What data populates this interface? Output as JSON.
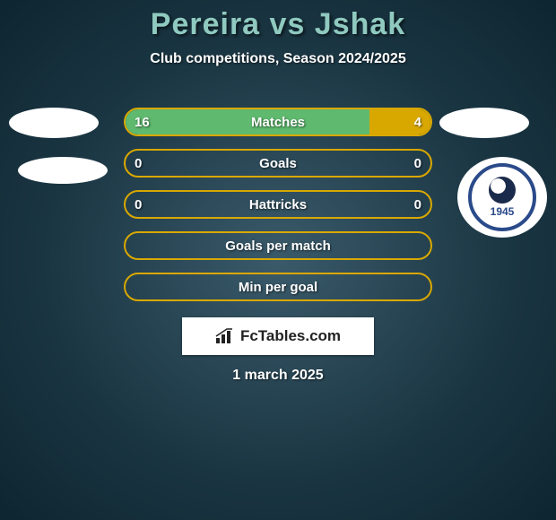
{
  "title": "Pereira vs Jshak",
  "subtitle": "Club competitions, Season 2024/2025",
  "date": "1 march 2025",
  "watermark_text": "FcTables.com",
  "crest_year": "1945",
  "colors": {
    "title_color": "#8fc9bf",
    "text_color": "#ffffff",
    "bar_border": "#d9a800",
    "bar_left_fill": "#5fb96f",
    "bar_right_fill": "#d9a800",
    "bg_inner": "#3a5a6a",
    "bg_outer": "#0d2530",
    "crest_blue": "#2a4a8a"
  },
  "bars": [
    {
      "label": "Matches",
      "left_val": "16",
      "right_val": "4",
      "left_pct": 80,
      "right_pct": 20
    },
    {
      "label": "Goals",
      "left_val": "0",
      "right_val": "0",
      "left_pct": 0,
      "right_pct": 0
    },
    {
      "label": "Hattricks",
      "left_val": "0",
      "right_val": "0",
      "left_pct": 0,
      "right_pct": 0
    },
    {
      "label": "Goals per match",
      "left_val": "",
      "right_val": "",
      "left_pct": 0,
      "right_pct": 0
    },
    {
      "label": "Min per goal",
      "left_val": "",
      "right_val": "",
      "left_pct": 0,
      "right_pct": 0
    }
  ]
}
